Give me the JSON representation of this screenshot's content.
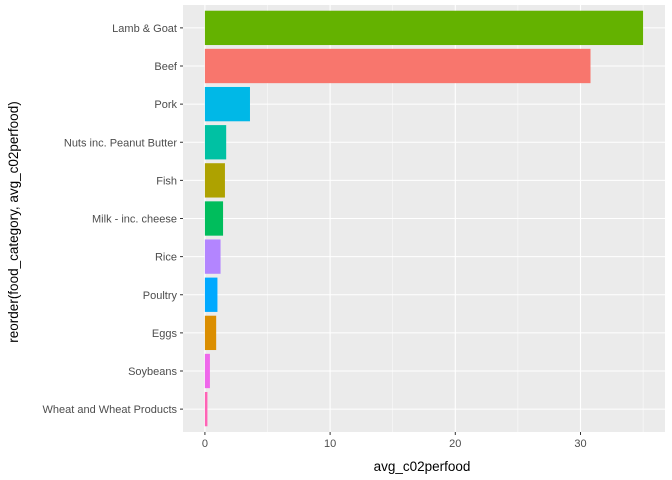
{
  "chart_data": {
    "type": "bar",
    "orientation": "horizontal",
    "categories": [
      "Lamb & Goat",
      "Beef",
      "Pork",
      "Nuts inc. Peanut Butter",
      "Fish",
      "Milk - inc. cheese",
      "Rice",
      "Poultry",
      "Eggs",
      "Soybeans",
      "Wheat and Wheat Products"
    ],
    "values": [
      35.0,
      30.8,
      3.6,
      1.7,
      1.6,
      1.45,
      1.25,
      1.0,
      0.9,
      0.4,
      0.2
    ],
    "colors": [
      "#64B200",
      "#F8766D",
      "#00B8E7",
      "#00C1A3",
      "#AEA200",
      "#00BD5C",
      "#B385FF",
      "#00A9FF",
      "#DB8E00",
      "#EF67EB",
      "#FF63B6"
    ],
    "title": "",
    "xlabel": "avg_c02perfood",
    "ylabel": "reorder(food_category, avg_c02perfood)",
    "xlim": [
      -1.75,
      36.75
    ],
    "xticks": [
      0,
      10,
      20,
      30
    ],
    "xtick_labels": [
      "0",
      "10",
      "20",
      "30"
    ],
    "grid": true,
    "legend": "none",
    "panel_background": "#EBEBEB",
    "grid_color": "#FFFFFF"
  }
}
